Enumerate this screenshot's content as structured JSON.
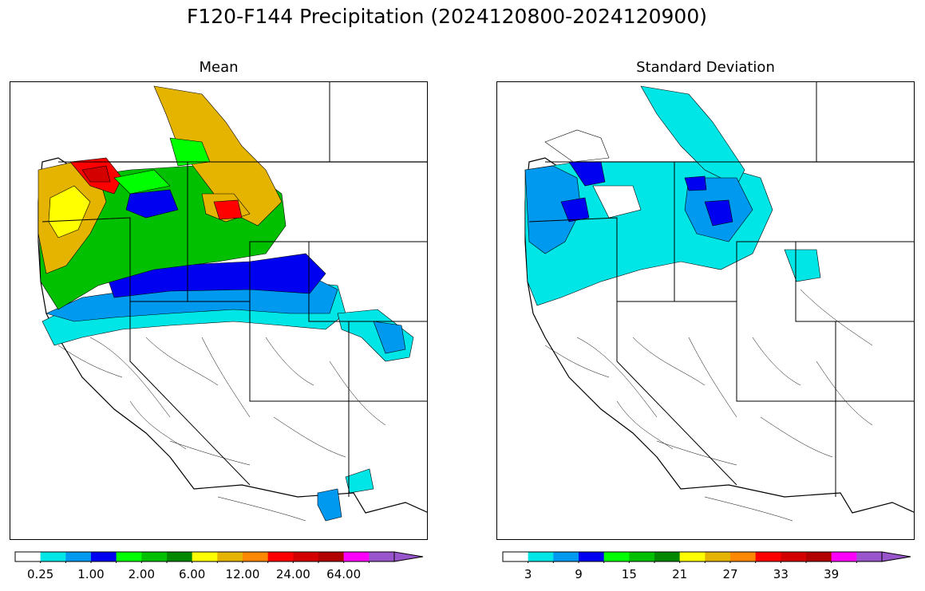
{
  "title": "F120-F144 Precipitation (2024120800-2024120900)",
  "panels": [
    {
      "name": "mean",
      "subtitle": "Mean",
      "colorbar": {
        "colors": [
          "#ffffff",
          "#00e5e5",
          "#0099f0",
          "#0000f0",
          "#00ff00",
          "#00c000",
          "#008800",
          "#ffff00",
          "#e5b400",
          "#ff8800",
          "#ff0000",
          "#d40000",
          "#b00000",
          "#ff00ff",
          "#9955cc"
        ],
        "tick_labels": [
          "0.25",
          "1.00",
          "2.00",
          "6.00",
          "12.00",
          "24.00",
          "64.00"
        ],
        "extend": "max"
      }
    },
    {
      "name": "stddev",
      "subtitle": "Standard Deviation",
      "colorbar": {
        "colors": [
          "#ffffff",
          "#00e5e5",
          "#0099f0",
          "#0000f0",
          "#00ff00",
          "#00c000",
          "#008800",
          "#ffff00",
          "#e5b400",
          "#ff8800",
          "#ff0000",
          "#d40000",
          "#b00000",
          "#ff00ff",
          "#9955cc"
        ],
        "tick_labels": [
          "3",
          "9",
          "15",
          "21",
          "27",
          "33",
          "39"
        ],
        "extend": "max"
      }
    }
  ]
}
